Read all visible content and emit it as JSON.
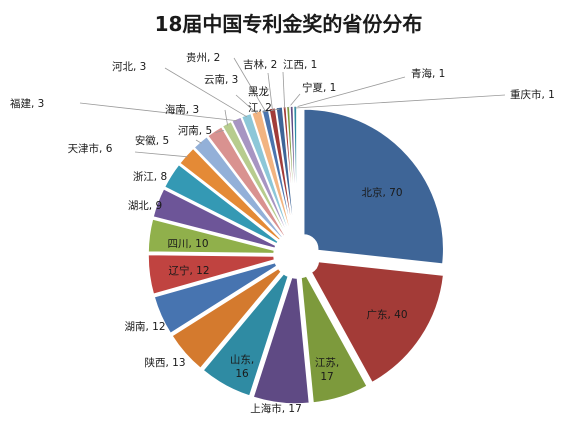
{
  "chart_data": {
    "type": "pie",
    "title": "18届中国专利金奖的省份分布",
    "legend": "none",
    "colors": [
      "#3e6597",
      "#a33b37",
      "#7d9a3c",
      "#5f4a84",
      "#2f8ba3",
      "#d47a2e",
      "#4774b0",
      "#c04340",
      "#90b04b",
      "#6d5598",
      "#3499b4",
      "#e48a36",
      "#93b0d8",
      "#d99290",
      "#b7cc8e",
      "#a795c2",
      "#8dc7d8",
      "#f2b481",
      "#4a74ae",
      "#a13c39"
    ],
    "slices": [
      {
        "label": "北京",
        "value": 70,
        "display": "北京, 70"
      },
      {
        "label": "广东",
        "value": 40,
        "display": "广东, 40"
      },
      {
        "label": "江苏",
        "value": 17,
        "display": "江苏, 17"
      },
      {
        "label": "上海市",
        "value": 17,
        "display": "上海市, 17"
      },
      {
        "label": "山东",
        "value": 16,
        "display": "山东, 16"
      },
      {
        "label": "陕西",
        "value": 13,
        "display": "陕西, 13"
      },
      {
        "label": "湖南",
        "value": 12,
        "display": "湖南, 12"
      },
      {
        "label": "辽宁",
        "value": 12,
        "display": "辽宁, 12"
      },
      {
        "label": "四川",
        "value": 10,
        "display": "四川, 10"
      },
      {
        "label": "湖北",
        "value": 9,
        "display": "湖北, 9"
      },
      {
        "label": "浙江",
        "value": 8,
        "display": "浙江, 8"
      },
      {
        "label": "天津市",
        "value": 6,
        "display": "天津市, 6"
      },
      {
        "label": "安徽",
        "value": 5,
        "display": "安徽, 5"
      },
      {
        "label": "河南",
        "value": 5,
        "display": "河南, 5"
      },
      {
        "label": "海南",
        "value": 3,
        "display": "海南, 3"
      },
      {
        "label": "福建",
        "value": 3,
        "display": "福建, 3"
      },
      {
        "label": "河北",
        "value": 3,
        "display": "河北, 3"
      },
      {
        "label": "云南",
        "value": 3,
        "display": "云南, 3"
      },
      {
        "label": "贵州",
        "value": 2,
        "display": "贵州, 2"
      },
      {
        "label": "吉林",
        "value": 2,
        "display": "吉林, 2"
      },
      {
        "label": "黑龙江",
        "value": 2,
        "display": "黑龙江, 2"
      },
      {
        "label": "江西",
        "value": 1,
        "display": "江西, 1"
      },
      {
        "label": "宁夏",
        "value": 1,
        "display": "宁夏, 1"
      },
      {
        "label": "青海",
        "value": 1,
        "display": "青海, 1"
      },
      {
        "label": "重庆市",
        "value": 1,
        "display": "重庆市, 1"
      }
    ]
  }
}
